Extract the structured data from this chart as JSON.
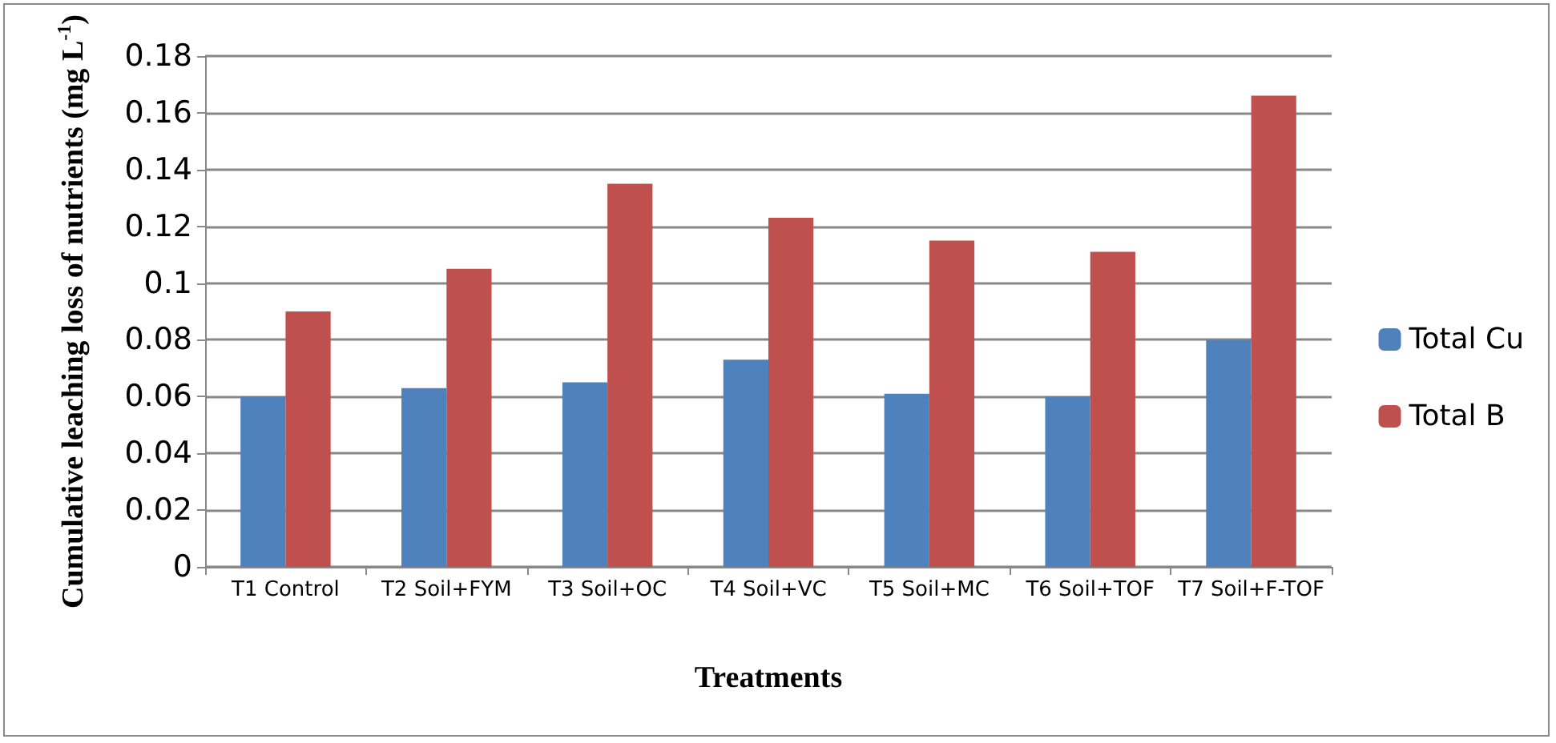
{
  "chart_data": {
    "type": "bar",
    "categories": [
      "T1 Control",
      "T2 Soil+FYM",
      "T3 Soil+OC",
      "T4 Soil+VC",
      "T5 Soil+MC",
      "T6 Soil+TOF",
      "T7 Soil+F-TOF"
    ],
    "series": [
      {
        "name": "Total Cu",
        "color": "#4f81bd",
        "values": [
          0.06,
          0.063,
          0.065,
          0.073,
          0.061,
          0.06,
          0.08
        ]
      },
      {
        "name": "Total B",
        "color": "#c0504d",
        "values": [
          0.09,
          0.105,
          0.135,
          0.123,
          0.115,
          0.111,
          0.166
        ]
      }
    ],
    "xlabel": "Treatments",
    "ylabel": "Cumulative leaching loss of nutrients (mg L$^{-1}$)",
    "ylim": [
      0,
      0.18
    ],
    "yticks": [
      0,
      0.02,
      0.04,
      0.06,
      0.08,
      0.1,
      0.12,
      0.14,
      0.16,
      0.18
    ],
    "grid": "y",
    "legend": "right"
  }
}
